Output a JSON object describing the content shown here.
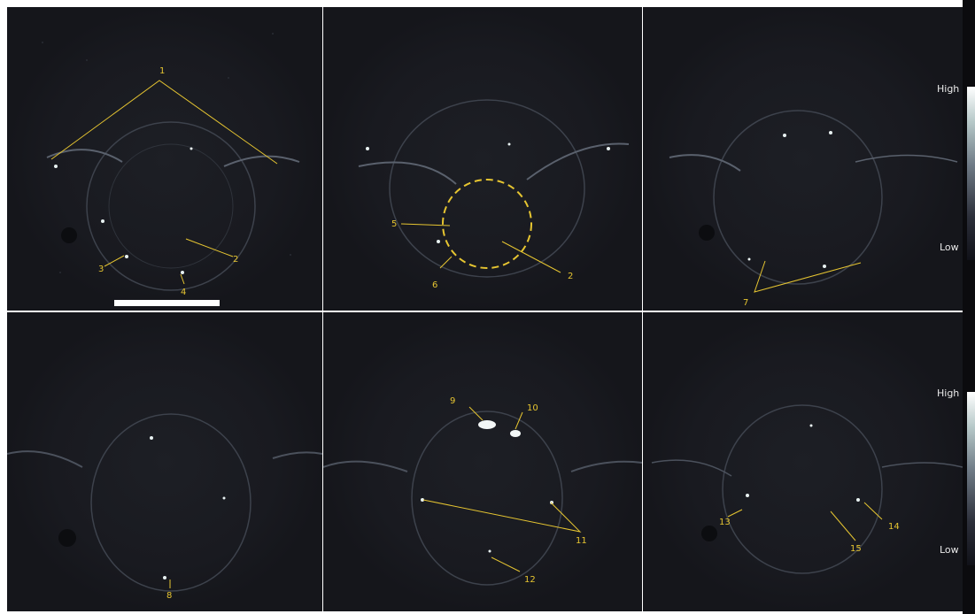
{
  "colorbar": {
    "top": {
      "high_label": "High",
      "low_label": "Low"
    },
    "bottom": {
      "high_label": "High",
      "low_label": "Low"
    }
  },
  "panels": [
    {
      "labels": [
        "1",
        "2",
        "3",
        "4"
      ]
    },
    {
      "labels": [
        "5",
        "2",
        "6"
      ]
    },
    {
      "labels": [
        "7"
      ]
    },
    {
      "labels": [
        "8"
      ]
    },
    {
      "labels": [
        "9",
        "10",
        "11",
        "12"
      ]
    },
    {
      "labels": [
        "13",
        "14",
        "15"
      ]
    }
  ],
  "colors": {
    "annotation": "#e6c531",
    "background": "#16171c",
    "scale_bar": "#ffffff"
  }
}
